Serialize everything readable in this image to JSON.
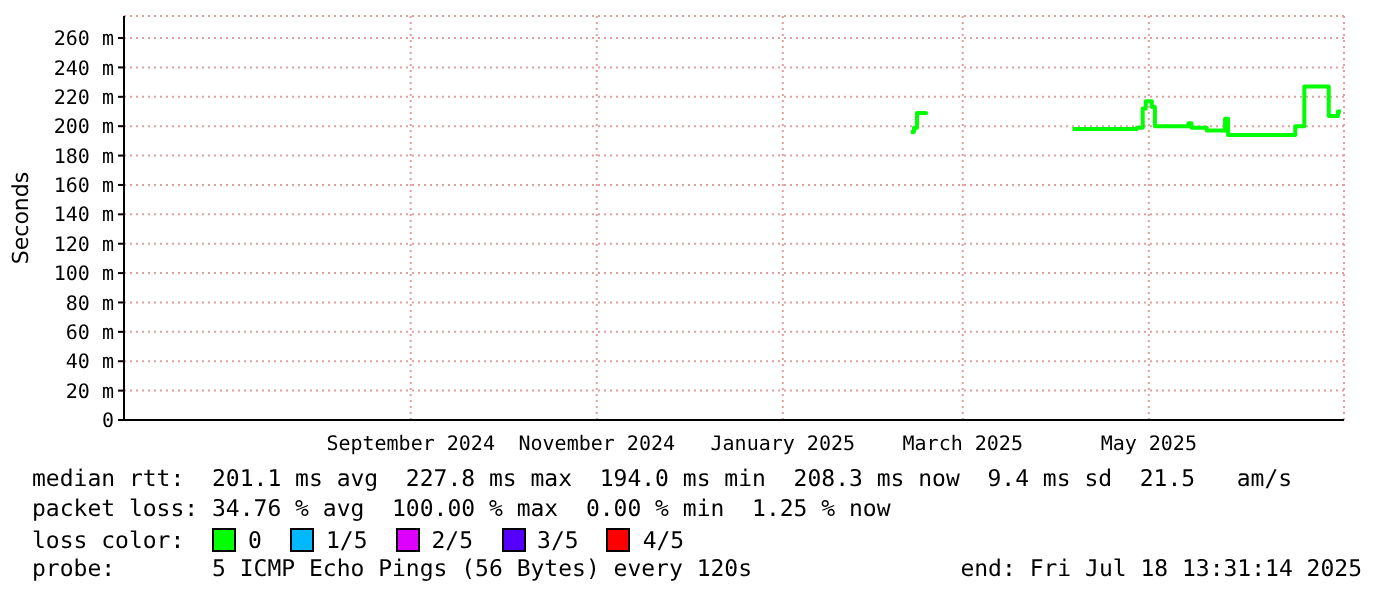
{
  "chart_data": {
    "type": "step",
    "ylabel": "Seconds",
    "x": [
      "2025-02-26",
      "2025-02-27",
      "2025-02-28",
      "2025-03-03",
      "2025-03-04",
      "2025-04-20",
      "2025-05-11",
      "2025-05-13",
      "2025-05-14",
      "2025-05-16",
      "2025-05-17",
      "2025-05-28",
      "2025-05-29",
      "2025-06-03",
      "2025-06-09",
      "2025-06-10",
      "2025-07-02",
      "2025-07-04",
      "2025-07-05",
      "2025-07-12",
      "2025-07-13",
      "2025-07-16",
      "2025-07-17"
    ],
    "series": [
      {
        "name": "0",
        "color": "#00ff00",
        "values": [
          196,
          199,
          209,
          210,
          null,
          198,
          199,
          212,
          217,
          213,
          200,
          202,
          199,
          197,
          205,
          194,
          200,
          200,
          227,
          227,
          207,
          210,
          210
        ]
      },
      {
        "name": "1/5",
        "color": "#00b8ff",
        "values": [
          null,
          null,
          null,
          null,
          null,
          null,
          null,
          null,
          null,
          null,
          null,
          null,
          null,
          null,
          null,
          null,
          null,
          null,
          null,
          null,
          null,
          null,
          null
        ]
      },
      {
        "name": "2/5",
        "color": "#dd00ff",
        "values": [
          null,
          null,
          null,
          null,
          null,
          null,
          null,
          null,
          null,
          null,
          null,
          null,
          null,
          null,
          null,
          null,
          null,
          null,
          null,
          null,
          null,
          null,
          null
        ]
      },
      {
        "name": "3/5",
        "color": "#5500ff",
        "values": [
          null,
          null,
          null,
          null,
          null,
          null,
          null,
          null,
          null,
          null,
          null,
          null,
          null,
          null,
          null,
          null,
          null,
          null,
          null,
          null,
          null,
          null,
          null
        ]
      },
      {
        "name": "4/5",
        "color": "#ff0000",
        "values": [
          null,
          null,
          null,
          null,
          null,
          null,
          null,
          null,
          null,
          null,
          null,
          null,
          null,
          null,
          null,
          null,
          null,
          null,
          null,
          null,
          null,
          null,
          null
        ]
      }
    ],
    "legend_title": "loss color:",
    "legend": "bottom",
    "xlim": [
      "2024-06-13",
      "2025-07-18"
    ],
    "xticks": [
      {
        "value": "2024-09-15",
        "label": "September 2024"
      },
      {
        "value": "2024-11-15",
        "label": "November 2024"
      },
      {
        "value": "2025-01-15",
        "label": "January 2025"
      },
      {
        "value": "2025-03-15",
        "label": "March 2025"
      },
      {
        "value": "2025-05-15",
        "label": "May 2025"
      }
    ],
    "ylim": [
      0,
      275
    ],
    "yticks": [
      0,
      {
        "value": 20,
        "label": "20 m"
      },
      {
        "value": 40,
        "label": "40 m"
      },
      {
        "value": 60,
        "label": "60 m"
      },
      {
        "value": 80,
        "label": "80 m"
      },
      {
        "value": 100,
        "label": "100 m"
      },
      {
        "value": 120,
        "label": "120 m"
      },
      {
        "value": 140,
        "label": "140 m"
      },
      {
        "value": 160,
        "label": "160 m"
      },
      {
        "value": 180,
        "label": "180 m"
      },
      {
        "value": 200,
        "label": "200 m"
      },
      {
        "value": 220,
        "label": "220 m"
      },
      {
        "value": 240,
        "label": "240 m"
      },
      {
        "value": 260,
        "label": "260 m"
      }
    ],
    "grid": true,
    "annotations": [
      "median rtt:  201.1 ms avg  227.8 ms max  194.0 ms min  208.3 ms now  9.4 ms sd  21.5   am/s",
      "packet loss: 34.76 % avg  100.00 % max  0.00 % min  1.25 % now",
      "probe:       5 ICMP Echo Pings (56 Bytes) every 120s",
      "end: Fri Jul 18 13:31:14 2025"
    ]
  }
}
